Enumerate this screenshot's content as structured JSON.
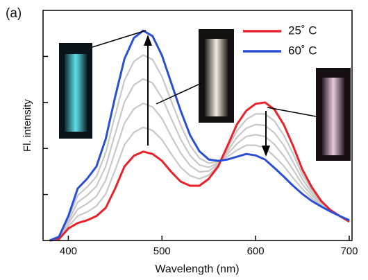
{
  "chart_data": {
    "type": "line",
    "panel_label": "(a)",
    "xlabel": "Wavelength (nm)",
    "ylabel": "Fl. intensity",
    "xlim": [
      373,
      703
    ],
    "xticks": [
      400,
      500,
      600,
      700
    ],
    "ylim": [
      0,
      5
    ],
    "yticks": [
      1,
      2,
      3,
      4
    ],
    "legend": "upper right",
    "x": [
      380,
      390,
      400,
      410,
      420,
      430,
      440,
      450,
      460,
      470,
      480,
      490,
      500,
      510,
      520,
      530,
      540,
      550,
      560,
      570,
      580,
      590,
      600,
      610,
      620,
      630,
      640,
      650,
      660,
      670,
      680,
      690,
      700
    ],
    "series": [
      {
        "color": "#c8c8c8",
        "values": [
          0,
          0.04,
          0.31,
          0.53,
          0.62,
          0.75,
          1.01,
          1.53,
          2.08,
          2.35,
          2.46,
          2.39,
          2.19,
          1.88,
          1.59,
          1.41,
          1.34,
          1.42,
          1.63,
          2.0,
          2.38,
          2.63,
          2.75,
          2.75,
          2.6,
          2.29,
          1.89,
          1.43,
          1.1,
          0.84,
          0.65,
          0.53,
          0.42
        ]
      },
      {
        "color": "#c8c8c8",
        "values": [
          0,
          0.05,
          0.37,
          0.68,
          0.8,
          0.96,
          1.31,
          1.93,
          2.55,
          2.86,
          2.98,
          2.9,
          2.65,
          2.26,
          1.9,
          1.63,
          1.49,
          1.51,
          1.66,
          1.94,
          2.24,
          2.44,
          2.52,
          2.5,
          2.34,
          2.07,
          1.71,
          1.33,
          1.04,
          0.81,
          0.65,
          0.53,
          0.42
        ]
      },
      {
        "color": "#c8c8c8",
        "values": [
          0,
          0.06,
          0.42,
          0.83,
          0.98,
          1.18,
          1.61,
          2.32,
          3.01,
          3.38,
          3.51,
          3.42,
          3.1,
          2.65,
          2.2,
          1.85,
          1.64,
          1.59,
          1.68,
          1.88,
          2.1,
          2.26,
          2.3,
          2.26,
          2.09,
          1.84,
          1.54,
          1.22,
          0.98,
          0.79,
          0.64,
          0.53,
          0.43
        ]
      },
      {
        "color": "#c8c8c8",
        "values": [
          0,
          0.07,
          0.48,
          0.98,
          1.16,
          1.39,
          1.91,
          2.72,
          3.48,
          3.89,
          4.03,
          3.93,
          3.56,
          3.03,
          2.51,
          2.07,
          1.79,
          1.68,
          1.71,
          1.82,
          1.96,
          2.07,
          2.07,
          2.01,
          1.83,
          1.62,
          1.36,
          1.12,
          0.92,
          0.76,
          0.64,
          0.53,
          0.43
        ]
      },
      {
        "name": "25˚ C",
        "color": "#e8212a",
        "values": [
          0,
          0.03,
          0.26,
          0.38,
          0.44,
          0.53,
          0.71,
          1.13,
          1.61,
          1.84,
          1.93,
          1.88,
          1.73,
          1.49,
          1.28,
          1.19,
          1.19,
          1.34,
          1.61,
          2.06,
          2.52,
          2.82,
          2.97,
          3.0,
          2.85,
          2.52,
          2.06,
          1.54,
          1.16,
          0.86,
          0.66,
          0.53,
          0.41
        ]
      },
      {
        "name": "60˚ C",
        "color": "#2a4fd6",
        "values": [
          0,
          0.08,
          0.53,
          1.13,
          1.34,
          1.61,
          2.21,
          3.12,
          3.95,
          4.4,
          4.56,
          4.44,
          4.02,
          3.42,
          2.82,
          2.29,
          1.94,
          1.76,
          1.73,
          1.76,
          1.82,
          1.88,
          1.85,
          1.76,
          1.58,
          1.39,
          1.19,
          1.01,
          0.86,
          0.74,
          0.63,
          0.53,
          0.44
        ]
      }
    ]
  }
}
